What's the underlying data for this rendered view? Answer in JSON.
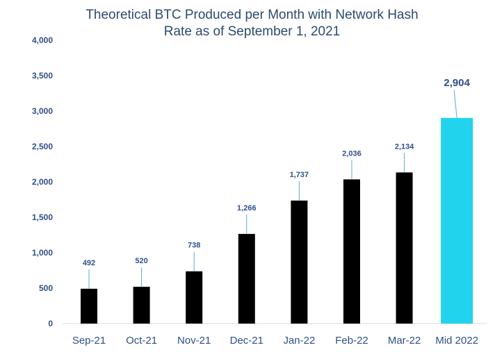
{
  "chart_data": {
    "type": "bar",
    "title": "Theoretical BTC Produced per Month with Network Hash Rate as of September 1, 2021",
    "title_lines": [
      "Theoretical BTC Produced per Month with Network Hash",
      "Rate as of September 1, 2021"
    ],
    "categories": [
      "Sep-21",
      "Oct-21",
      "Nov-21",
      "Dec-21",
      "Jan-22",
      "Feb-22",
      "Mar-22",
      "Mid 2022"
    ],
    "values": [
      492,
      520,
      738,
      1266,
      1737,
      2036,
      2134,
      2904
    ],
    "data_labels": [
      "492",
      "520",
      "738",
      "1,266",
      "1,737",
      "2,036",
      "2,134",
      "2,904"
    ],
    "yticks": [
      0,
      500,
      1000,
      1500,
      2000,
      2500,
      3000,
      3500,
      4000
    ],
    "ytick_labels": [
      "0",
      "500",
      "1,000",
      "1,500",
      "2,000",
      "2,500",
      "3,000",
      "3,500",
      "4,000"
    ],
    "ylim": [
      0,
      4000
    ],
    "xlabel": "",
    "ylabel": "",
    "grid": false,
    "colors": {
      "bar": "#000000",
      "highlight_bar": "#22d3ee",
      "text": "#2f4f8a",
      "title": "#2c4a6e",
      "leader": "#5fa8d3",
      "axis": "#d9d9d9"
    },
    "highlight_index": 7
  }
}
